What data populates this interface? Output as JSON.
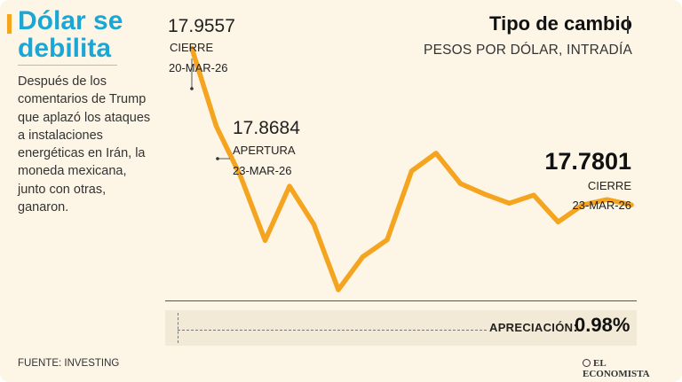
{
  "sidebar": {
    "title_line1": "Dólar se",
    "title_line2": "debilita",
    "text": "Después de los comentarios de Trump que aplazó los ataques a instalaciones energéticas en Irán, la moneda mexicana, junto con otras, ganaron."
  },
  "footer": {
    "source": "FUENTE: INVESTING",
    "logo": "EL ECONOMISTA"
  },
  "colors": {
    "accent": "#f5a41f",
    "title_blue": "#1ba7d6",
    "background": "#fdf6e6",
    "line": "#f5a41f"
  },
  "icons": {
    "logo_mark": "circle-logo-icon"
  },
  "chart_data": {
    "type": "line",
    "title": "Tipo de cambio",
    "subtitle": "PESOS POR DÓLAR, INTRADÍA",
    "series": [
      {
        "values": [
          17.9557,
          17.8684,
          17.812,
          17.7402,
          17.801,
          17.758,
          17.685,
          17.722,
          17.741,
          17.818,
          17.838,
          17.804,
          17.792,
          17.782,
          17.791,
          17.761,
          17.78,
          17.786,
          17.7801
        ]
      }
    ],
    "ylim": [
      17.67,
      17.97
    ],
    "annotations": [
      {
        "value": "17.9557",
        "label": "CIERRE",
        "date": "20-MAR-26"
      },
      {
        "value": "17.8684",
        "label": "APERTURA",
        "date": "23-MAR-26"
      },
      {
        "value": "17.7801",
        "label": "CIERRE",
        "date": "23-MAR-26"
      }
    ],
    "appreciation": {
      "label": "APRECIACIÓN",
      "colon": ":",
      "value": "0.98%"
    }
  }
}
